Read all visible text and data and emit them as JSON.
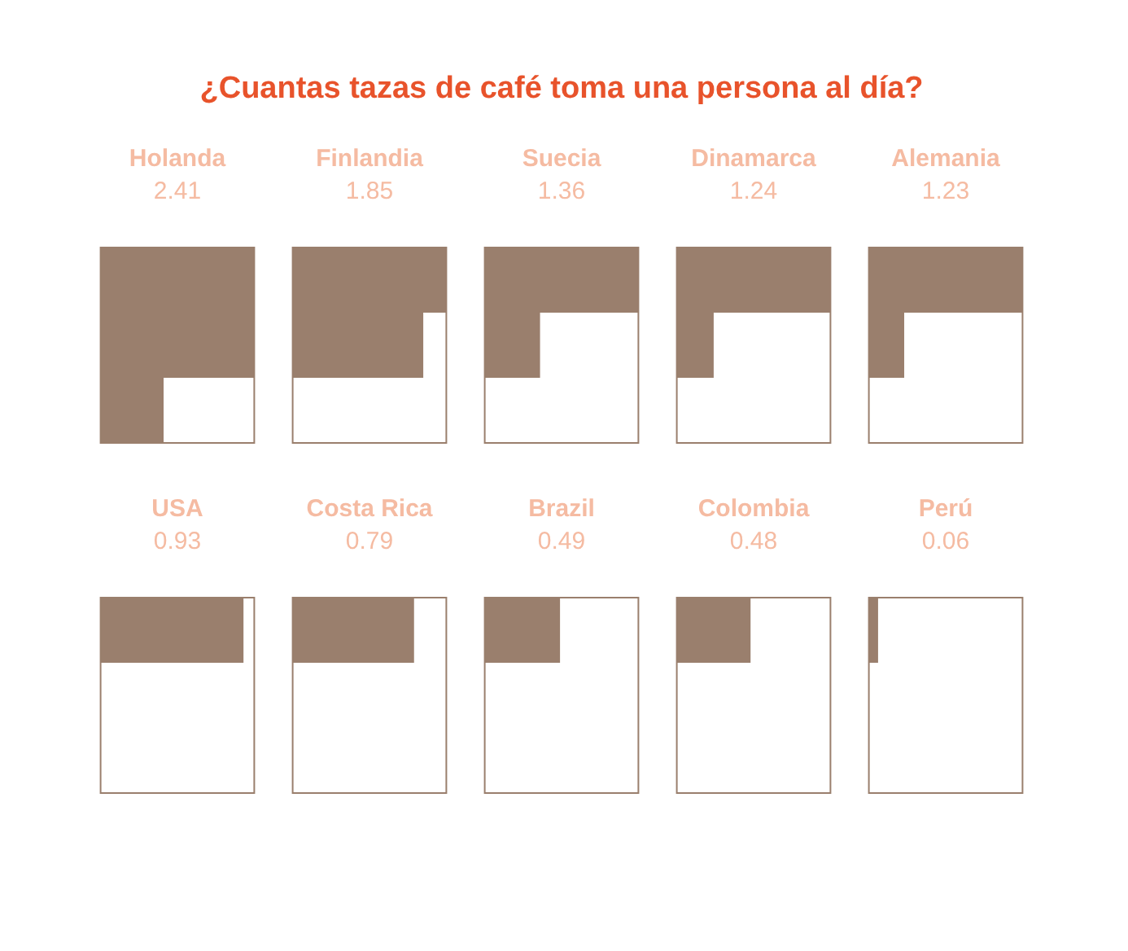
{
  "chart_data": {
    "type": "other",
    "title": "¿Cuantas tazas de café toma una persona al día?",
    "categories": [
      "Holanda",
      "Finlandia",
      "Suecia",
      "Dinamarca",
      "Alemania",
      "USA",
      "Costa Rica",
      "Brazil",
      "Colombia",
      "Perú"
    ],
    "values": [
      2.41,
      1.85,
      1.36,
      1.24,
      1.23,
      0.93,
      0.79,
      0.49,
      0.48,
      0.06
    ],
    "color": "#9a7f6d",
    "data_labels": true
  }
}
